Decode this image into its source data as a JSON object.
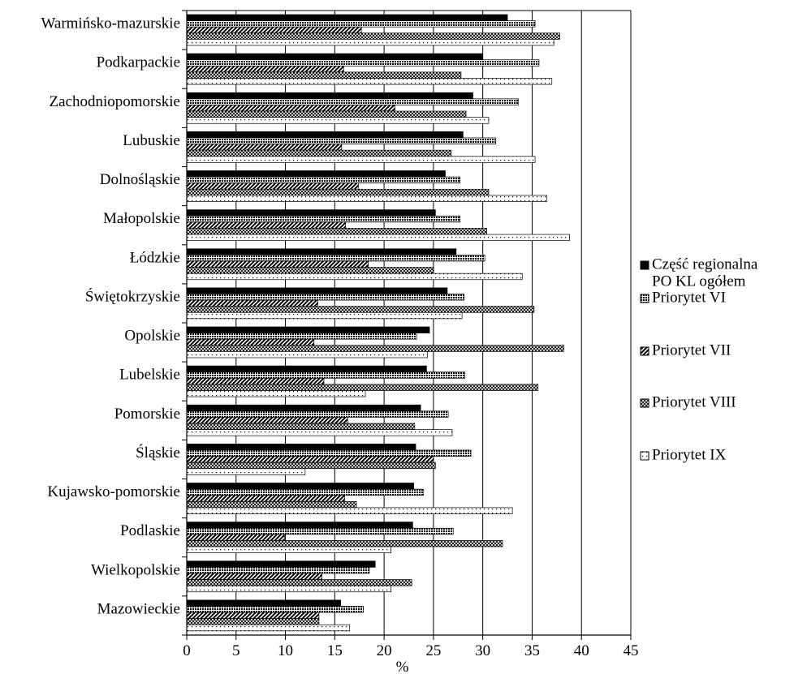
{
  "chart_data": {
    "type": "bar",
    "orientation": "horizontal",
    "title": "",
    "xlabel": "%",
    "ylabel": "",
    "xlim": [
      0,
      45
    ],
    "xticks": [
      0,
      5,
      10,
      15,
      20,
      25,
      30,
      35,
      40,
      45
    ],
    "grid": "vertical",
    "legend_position": "right",
    "categories": [
      "Warmińsko-mazurskie",
      "Podkarpackie",
      "Zachodniopomorskie",
      "Lubuskie",
      "Dolnośląskie",
      "Małopolskie",
      "Łódzkie",
      "Świętokrzyskie",
      "Opolskie",
      "Lubelskie",
      "Pomorskie",
      "Śląskie",
      "Kujawsko-pomorskie",
      "Podlaskie",
      "Wielkopolskie",
      "Mazowieckie"
    ],
    "series": [
      {
        "name": "Część regionalna PO KL ogółem",
        "legend_lines": [
          "Część regionalna",
          "PO KL ogółem"
        ],
        "pattern": "solid",
        "values": [
          32.5,
          30.0,
          29.0,
          28.0,
          26.2,
          25.2,
          27.3,
          26.4,
          24.6,
          24.3,
          23.7,
          23.2,
          23.0,
          22.9,
          19.1,
          15.6
        ]
      },
      {
        "name": "Priorytet VI",
        "legend_lines": [
          "Priorytet VI"
        ],
        "pattern": "dense",
        "values": [
          35.3,
          35.7,
          33.6,
          31.3,
          27.7,
          27.7,
          30.2,
          28.1,
          23.3,
          28.2,
          26.5,
          28.8,
          24.0,
          27.0,
          18.5,
          17.9
        ]
      },
      {
        "name": "Priorytet VII",
        "legend_lines": [
          "Priorytet VII"
        ],
        "pattern": "diagonal",
        "values": [
          17.7,
          15.9,
          21.1,
          15.7,
          17.4,
          16.1,
          18.4,
          13.3,
          12.9,
          13.9,
          16.3,
          25.0,
          16.0,
          9.9,
          13.7,
          13.4
        ]
      },
      {
        "name": "Priorytet VIII",
        "legend_lines": [
          "Priorytet VIII"
        ],
        "pattern": "crosshatch",
        "values": [
          37.8,
          27.8,
          28.3,
          26.8,
          30.6,
          30.4,
          25.0,
          35.2,
          38.2,
          35.6,
          23.1,
          25.2,
          17.2,
          32.0,
          22.8,
          13.4
        ]
      },
      {
        "name": "Priorytet IX",
        "legend_lines": [
          "Priorytet IX"
        ],
        "pattern": "dotted",
        "values": [
          37.2,
          37.0,
          30.6,
          35.3,
          36.5,
          38.8,
          34.0,
          27.9,
          24.4,
          18.1,
          26.9,
          12.0,
          33.0,
          20.7,
          20.7,
          16.5
        ]
      }
    ]
  }
}
